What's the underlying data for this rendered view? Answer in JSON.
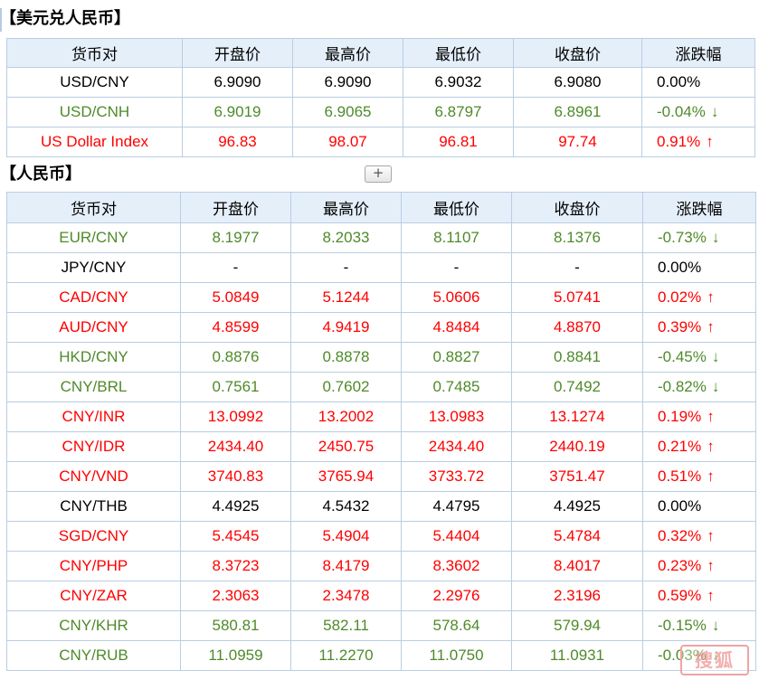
{
  "section1": {
    "title": "【美元兑人民币】",
    "headers": [
      "货币对",
      "开盘价",
      "最高价",
      "最低价",
      "收盘价",
      "涨跌幅"
    ],
    "rows": [
      {
        "pair": "USD/CNY",
        "open": "6.9090",
        "high": "6.9090",
        "low": "6.9032",
        "close": "6.9080",
        "change": "0.00%",
        "arrow": "",
        "trend": "flat"
      },
      {
        "pair": "USD/CNH",
        "open": "6.9019",
        "high": "6.9065",
        "low": "6.8797",
        "close": "6.8961",
        "change": "-0.04%",
        "arrow": "↓",
        "trend": "down"
      },
      {
        "pair": "US Dollar Index",
        "open": "96.83",
        "high": "98.07",
        "low": "96.81",
        "close": "97.74",
        "change": "0.91%",
        "arrow": "↑",
        "trend": "up"
      }
    ]
  },
  "section2": {
    "title": "【人民币】",
    "expand_label": "+",
    "headers": [
      "货币对",
      "开盘价",
      "最高价",
      "最低价",
      "收盘价",
      "涨跌幅"
    ],
    "rows": [
      {
        "pair": "EUR/CNY",
        "open": "8.1977",
        "high": "8.2033",
        "low": "8.1107",
        "close": "8.1376",
        "change": "-0.73%",
        "arrow": "↓",
        "trend": "down"
      },
      {
        "pair": "JPY/CNY",
        "open": "-",
        "high": "-",
        "low": "-",
        "close": "-",
        "change": "0.00%",
        "arrow": "",
        "trend": "flat"
      },
      {
        "pair": "CAD/CNY",
        "open": "5.0849",
        "high": "5.1244",
        "low": "5.0606",
        "close": "5.0741",
        "change": "0.02%",
        "arrow": "↑",
        "trend": "up"
      },
      {
        "pair": "AUD/CNY",
        "open": "4.8599",
        "high": "4.9419",
        "low": "4.8484",
        "close": "4.8870",
        "change": "0.39%",
        "arrow": "↑",
        "trend": "up"
      },
      {
        "pair": "HKD/CNY",
        "open": "0.8876",
        "high": "0.8878",
        "low": "0.8827",
        "close": "0.8841",
        "change": "-0.45%",
        "arrow": "↓",
        "trend": "down"
      },
      {
        "pair": "CNY/BRL",
        "open": "0.7561",
        "high": "0.7602",
        "low": "0.7485",
        "close": "0.7492",
        "change": "-0.82%",
        "arrow": "↓",
        "trend": "down"
      },
      {
        "pair": "CNY/INR",
        "open": "13.0992",
        "high": "13.2002",
        "low": "13.0983",
        "close": "13.1274",
        "change": "0.19%",
        "arrow": "↑",
        "trend": "up"
      },
      {
        "pair": "CNY/IDR",
        "open": "2434.40",
        "high": "2450.75",
        "low": "2434.40",
        "close": "2440.19",
        "change": "0.21%",
        "arrow": "↑",
        "trend": "up"
      },
      {
        "pair": "CNY/VND",
        "open": "3740.83",
        "high": "3765.94",
        "low": "3733.72",
        "close": "3751.47",
        "change": "0.51%",
        "arrow": "↑",
        "trend": "up"
      },
      {
        "pair": "CNY/THB",
        "open": "4.4925",
        "high": "4.5432",
        "low": "4.4795",
        "close": "4.4925",
        "change": "0.00%",
        "arrow": "",
        "trend": "flat"
      },
      {
        "pair": "SGD/CNY",
        "open": "5.4545",
        "high": "5.4904",
        "low": "5.4404",
        "close": "5.4784",
        "change": "0.32%",
        "arrow": "↑",
        "trend": "up"
      },
      {
        "pair": "CNY/PHP",
        "open": "8.3723",
        "high": "8.4179",
        "low": "8.3602",
        "close": "8.4017",
        "change": "0.23%",
        "arrow": "↑",
        "trend": "up"
      },
      {
        "pair": "CNY/ZAR",
        "open": "2.3063",
        "high": "2.3478",
        "low": "2.2976",
        "close": "2.3196",
        "change": "0.59%",
        "arrow": "↑",
        "trend": "up"
      },
      {
        "pair": "CNY/KHR",
        "open": "580.81",
        "high": "582.11",
        "low": "578.64",
        "close": "579.94",
        "change": "-0.15%",
        "arrow": "↓",
        "trend": "down"
      },
      {
        "pair": "CNY/RUB",
        "open": "11.0959",
        "high": "11.2270",
        "low": "11.0750",
        "close": "11.0931",
        "change": "-0.03%",
        "arrow": "↓",
        "trend": "down"
      }
    ]
  },
  "watermark": "搜狐",
  "colors": {
    "up": "#ff0000",
    "down": "#4f8a2a",
    "flat": "#000000",
    "header_bg": "#e5effa",
    "border": "#b9cde3"
  }
}
